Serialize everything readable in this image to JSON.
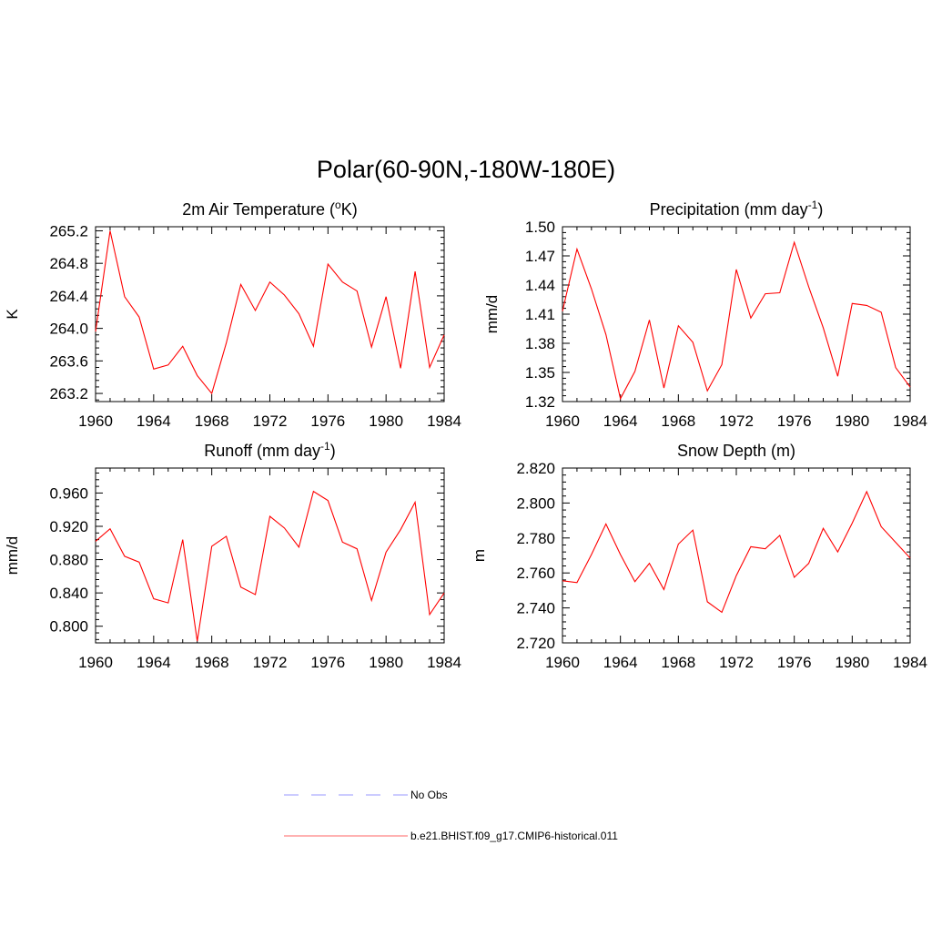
{
  "figure": {
    "title": "Polar(60-90N,-180W-180E)"
  },
  "chart_data": [
    {
      "type": "line",
      "title": {
        "main": "2m Air Temperature (",
        "sup": "o",
        "rest": "K)"
      },
      "xlabel": "",
      "ylabel": "K",
      "xlim": [
        1960,
        1984
      ],
      "ylim": [
        263.1,
        265.25
      ],
      "xticks": [
        "1960",
        "1964",
        "1968",
        "1972",
        "1976",
        "1980",
        "1984"
      ],
      "yticks": [
        "263.2",
        "263.6",
        "264.0",
        "264.4",
        "264.8",
        "265.2"
      ],
      "x": [
        1960,
        1961,
        1962,
        1963,
        1964,
        1965,
        1966,
        1967,
        1968,
        1969,
        1970,
        1971,
        1972,
        1973,
        1974,
        1975,
        1976,
        1977,
        1978,
        1979,
        1980,
        1981,
        1982,
        1983,
        1984
      ],
      "series": [
        {
          "values": [
            263.96,
            265.2,
            264.39,
            264.14,
            263.5,
            263.55,
            263.78,
            263.42,
            263.2,
            263.82,
            264.54,
            264.22,
            264.57,
            264.41,
            264.18,
            263.78,
            264.79,
            264.57,
            264.46,
            263.77,
            264.39,
            263.51,
            264.7,
            263.52,
            263.92
          ],
          "color": "#ff0000"
        }
      ]
    },
    {
      "type": "line",
      "title": {
        "main": "Precipitation (mm day",
        "sup": "-1",
        "rest": ")"
      },
      "xlabel": "",
      "ylabel": "mm/d",
      "xlim": [
        1960,
        1984
      ],
      "ylim": [
        1.32,
        1.5
      ],
      "xticks": [
        "1960",
        "1964",
        "1968",
        "1972",
        "1976",
        "1980",
        "1984"
      ],
      "yticks": [
        "1.32",
        "1.35",
        "1.38",
        "1.41",
        "1.44",
        "1.47",
        "1.50"
      ],
      "x": [
        1960,
        1961,
        1962,
        1963,
        1964,
        1965,
        1966,
        1967,
        1968,
        1969,
        1970,
        1971,
        1972,
        1973,
        1974,
        1975,
        1976,
        1977,
        1978,
        1979,
        1980,
        1981,
        1982,
        1983,
        1984
      ],
      "series": [
        {
          "values": [
            1.413,
            1.477,
            1.436,
            1.389,
            1.323,
            1.351,
            1.404,
            1.334,
            1.398,
            1.381,
            1.331,
            1.358,
            1.456,
            1.406,
            1.431,
            1.432,
            1.484,
            1.438,
            1.396,
            1.346,
            1.421,
            1.419,
            1.412,
            1.355,
            1.335
          ],
          "color": "#ff0000"
        }
      ]
    },
    {
      "type": "line",
      "title": {
        "main": "Runoff (mm day",
        "sup": "-1",
        "rest": ")"
      },
      "xlabel": "",
      "ylabel": "mm/d",
      "xlim": [
        1960,
        1984
      ],
      "ylim": [
        0.78,
        0.99
      ],
      "xticks": [
        "1960",
        "1964",
        "1968",
        "1972",
        "1976",
        "1980",
        "1984"
      ],
      "yticks": [
        "0.800",
        "0.840",
        "0.880",
        "0.920",
        "0.960"
      ],
      "x": [
        1960,
        1961,
        1962,
        1963,
        1964,
        1965,
        1966,
        1967,
        1968,
        1969,
        1970,
        1971,
        1972,
        1973,
        1974,
        1975,
        1976,
        1977,
        1978,
        1979,
        1980,
        1981,
        1982,
        1983,
        1984
      ],
      "series": [
        {
          "values": [
            0.902,
            0.917,
            0.884,
            0.877,
            0.833,
            0.828,
            0.904,
            0.782,
            0.896,
            0.908,
            0.847,
            0.838,
            0.932,
            0.918,
            0.895,
            0.962,
            0.951,
            0.901,
            0.893,
            0.831,
            0.889,
            0.916,
            0.949,
            0.814,
            0.84
          ],
          "color": "#ff0000"
        }
      ]
    },
    {
      "type": "line",
      "title": {
        "main": "Snow Depth (m)",
        "sup": "",
        "rest": ""
      },
      "xlabel": "",
      "ylabel": "m",
      "xlim": [
        1960,
        1984
      ],
      "ylim": [
        2.72,
        2.82
      ],
      "xticks": [
        "1960",
        "1964",
        "1968",
        "1972",
        "1976",
        "1980",
        "1984"
      ],
      "yticks": [
        "2.720",
        "2.740",
        "2.760",
        "2.780",
        "2.800",
        "2.820"
      ],
      "x": [
        1960,
        1961,
        1962,
        1963,
        1964,
        1965,
        1966,
        1967,
        1968,
        1969,
        1970,
        1971,
        1972,
        1973,
        1974,
        1975,
        1976,
        1977,
        1978,
        1979,
        1980,
        1981,
        1982,
        1983,
        1984
      ],
      "series": [
        {
          "values": [
            2.7555,
            2.7545,
            2.7705,
            2.788,
            2.7705,
            2.755,
            2.7655,
            2.7505,
            2.7765,
            2.7845,
            2.7435,
            2.7375,
            2.7585,
            2.775,
            2.7738,
            2.7815,
            2.7575,
            2.7655,
            2.7855,
            2.772,
            2.7885,
            2.8065,
            2.7865,
            2.7775,
            2.7685
          ],
          "color": "#ff0000"
        }
      ]
    }
  ],
  "legend": {
    "placement": "bottom-center",
    "entries": [
      {
        "label": "No Obs",
        "color": "#9999ff",
        "style": "dashed"
      },
      {
        "label": "b.e21.BHIST.f09_g17.CMIP6-historical.011",
        "color": "#ff6666",
        "style": "solid"
      }
    ]
  }
}
